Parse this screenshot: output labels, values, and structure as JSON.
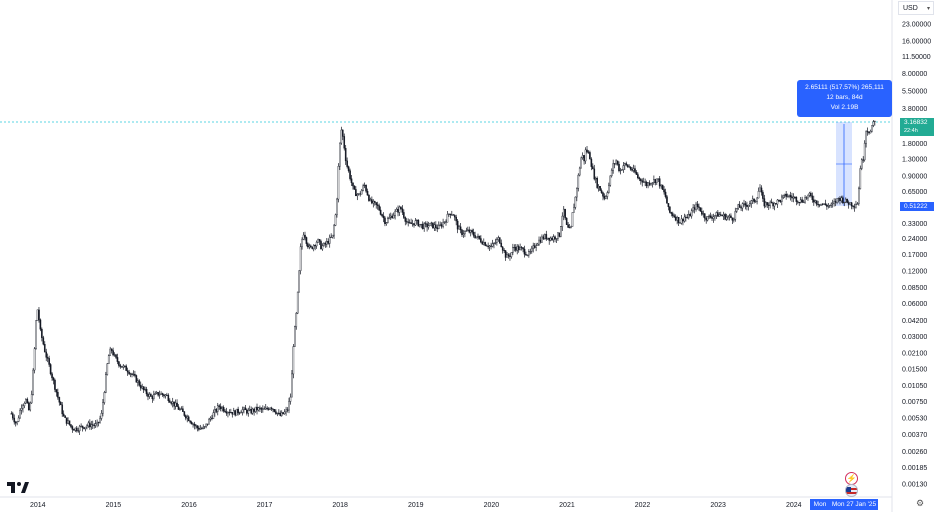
{
  "toolbar": {
    "currency": "USD"
  },
  "measure": {
    "change": "2.65111 (517.57%) 265,111",
    "bars": "12 bars, 84d",
    "volume": "Vol 2.19B"
  },
  "labels": {
    "last_price": "3.16832",
    "countdown": "22:4h",
    "range_low": "0.51222",
    "crosshair_day": "Mon",
    "crosshair_date": "Mon 27 Jan '25"
  },
  "chart_data": {
    "type": "candlestick",
    "scale": "log",
    "y_axis_ticks": [
      "23.00000",
      "16.00000",
      "11.50000",
      "8.00000",
      "5.50000",
      "3.80000",
      "1.80000",
      "1.30000",
      "0.90000",
      "0.65000",
      "0.33000",
      "0.24000",
      "0.17000",
      "0.12000",
      "0.08500",
      "0.06000",
      "0.04200",
      "0.03000",
      "0.02100",
      "0.01500",
      "0.01050",
      "0.00750",
      "0.00530",
      "0.00370",
      "0.00260",
      "0.00185",
      "0.00130"
    ],
    "x_axis_ticks": [
      "2014",
      "2015",
      "2016",
      "2017",
      "2018",
      "2019",
      "2020",
      "2021",
      "2022",
      "2023",
      "2024"
    ],
    "ylim": [
      0.00105,
      35
    ],
    "xlim": [
      2013.5,
      2025.3
    ],
    "series_close": [
      [
        2013.65,
        0.0058
      ],
      [
        2013.72,
        0.0046
      ],
      [
        2013.78,
        0.0068
      ],
      [
        2013.84,
        0.0078
      ],
      [
        2013.88,
        0.0062
      ],
      [
        2013.91,
        0.0075
      ],
      [
        2013.95,
        0.018
      ],
      [
        2013.98,
        0.045
      ],
      [
        2014.0,
        0.055
      ],
      [
        2014.03,
        0.034
      ],
      [
        2014.06,
        0.028
      ],
      [
        2014.1,
        0.021
      ],
      [
        2014.15,
        0.016
      ],
      [
        2014.2,
        0.012
      ],
      [
        2014.25,
        0.009
      ],
      [
        2014.3,
        0.0068
      ],
      [
        2014.35,
        0.0052
      ],
      [
        2014.4,
        0.0048
      ],
      [
        2014.45,
        0.0043
      ],
      [
        2014.5,
        0.0042
      ],
      [
        2014.6,
        0.0044
      ],
      [
        2014.7,
        0.0046
      ],
      [
        2014.78,
        0.0045
      ],
      [
        2014.84,
        0.0055
      ],
      [
        2014.88,
        0.0095
      ],
      [
        2014.93,
        0.019
      ],
      [
        2014.97,
        0.023
      ],
      [
        2015.02,
        0.019
      ],
      [
        2015.1,
        0.016
      ],
      [
        2015.2,
        0.0145
      ],
      [
        2015.3,
        0.012
      ],
      [
        2015.4,
        0.0095
      ],
      [
        2015.5,
        0.0082
      ],
      [
        2015.6,
        0.0089
      ],
      [
        2015.7,
        0.0085
      ],
      [
        2015.8,
        0.0071
      ],
      [
        2015.9,
        0.0061
      ],
      [
        2016.0,
        0.0052
      ],
      [
        2016.1,
        0.0043
      ],
      [
        2016.2,
        0.0042
      ],
      [
        2016.3,
        0.0055
      ],
      [
        2016.4,
        0.0068
      ],
      [
        2016.5,
        0.0062
      ],
      [
        2016.6,
        0.0059
      ],
      [
        2016.7,
        0.0063
      ],
      [
        2016.8,
        0.006
      ],
      [
        2016.9,
        0.0064
      ],
      [
        2017.0,
        0.0062
      ],
      [
        2017.08,
        0.0068
      ],
      [
        2017.15,
        0.0061
      ],
      [
        2017.2,
        0.0055
      ],
      [
        2017.25,
        0.0058
      ],
      [
        2017.3,
        0.0062
      ],
      [
        2017.35,
        0.0088
      ],
      [
        2017.38,
        0.025
      ],
      [
        2017.42,
        0.048
      ],
      [
        2017.45,
        0.095
      ],
      [
        2017.48,
        0.21
      ],
      [
        2017.52,
        0.28
      ],
      [
        2017.56,
        0.22
      ],
      [
        2017.6,
        0.19
      ],
      [
        2017.65,
        0.21
      ],
      [
        2017.7,
        0.23
      ],
      [
        2017.75,
        0.2
      ],
      [
        2017.8,
        0.21
      ],
      [
        2017.85,
        0.23
      ],
      [
        2017.9,
        0.25
      ],
      [
        2017.95,
        0.45
      ],
      [
        2017.98,
        1.2
      ],
      [
        2018.01,
        2.5
      ],
      [
        2018.04,
        2.0
      ],
      [
        2018.08,
        1.2
      ],
      [
        2018.12,
        0.95
      ],
      [
        2018.18,
        0.65
      ],
      [
        2018.25,
        0.6
      ],
      [
        2018.32,
        0.75
      ],
      [
        2018.4,
        0.52
      ],
      [
        2018.5,
        0.47
      ],
      [
        2018.6,
        0.34
      ],
      [
        2018.7,
        0.4
      ],
      [
        2018.8,
        0.46
      ],
      [
        2018.85,
        0.38
      ],
      [
        2018.9,
        0.32
      ],
      [
        2019.0,
        0.34
      ],
      [
        2019.1,
        0.31
      ],
      [
        2019.2,
        0.32
      ],
      [
        2019.3,
        0.3
      ],
      [
        2019.4,
        0.36
      ],
      [
        2019.45,
        0.42
      ],
      [
        2019.5,
        0.4
      ],
      [
        2019.55,
        0.31
      ],
      [
        2019.6,
        0.27
      ],
      [
        2019.7,
        0.28
      ],
      [
        2019.8,
        0.25
      ],
      [
        2019.9,
        0.22
      ],
      [
        2020.0,
        0.2
      ],
      [
        2020.1,
        0.24
      ],
      [
        2020.2,
        0.16
      ],
      [
        2020.25,
        0.17
      ],
      [
        2020.3,
        0.2
      ],
      [
        2020.4,
        0.19
      ],
      [
        2020.5,
        0.17
      ],
      [
        2020.6,
        0.22
      ],
      [
        2020.7,
        0.25
      ],
      [
        2020.8,
        0.24
      ],
      [
        2020.9,
        0.26
      ],
      [
        2020.95,
        0.45
      ],
      [
        2021.0,
        0.3
      ],
      [
        2021.05,
        0.28
      ],
      [
        2021.08,
        0.45
      ],
      [
        2021.1,
        0.5
      ],
      [
        2021.15,
        0.9
      ],
      [
        2021.2,
        1.5
      ],
      [
        2021.22,
        1.2
      ],
      [
        2021.25,
        1.6
      ],
      [
        2021.3,
        1.4
      ],
      [
        2021.35,
        0.95
      ],
      [
        2021.4,
        0.75
      ],
      [
        2021.45,
        0.66
      ],
      [
        2021.5,
        0.56
      ],
      [
        2021.55,
        0.72
      ],
      [
        2021.6,
        1.1
      ],
      [
        2021.65,
        1.25
      ],
      [
        2021.7,
        1.0
      ],
      [
        2021.75,
        1.15
      ],
      [
        2021.8,
        1.12
      ],
      [
        2021.85,
        1.05
      ],
      [
        2021.9,
        0.97
      ],
      [
        2021.95,
        0.85
      ],
      [
        2022.0,
        0.83
      ],
      [
        2022.05,
        0.75
      ],
      [
        2022.1,
        0.8
      ],
      [
        2022.15,
        0.82
      ],
      [
        2022.2,
        0.85
      ],
      [
        2022.25,
        0.7
      ],
      [
        2022.3,
        0.6
      ],
      [
        2022.35,
        0.42
      ],
      [
        2022.4,
        0.4
      ],
      [
        2022.5,
        0.34
      ],
      [
        2022.55,
        0.38
      ],
      [
        2022.6,
        0.37
      ],
      [
        2022.7,
        0.48
      ],
      [
        2022.75,
        0.46
      ],
      [
        2022.8,
        0.4
      ],
      [
        2022.85,
        0.37
      ],
      [
        2022.9,
        0.38
      ],
      [
        2023.0,
        0.4
      ],
      [
        2023.1,
        0.38
      ],
      [
        2023.2,
        0.37
      ],
      [
        2023.25,
        0.46
      ],
      [
        2023.3,
        0.47
      ],
      [
        2023.4,
        0.5
      ],
      [
        2023.5,
        0.55
      ],
      [
        2023.55,
        0.72
      ],
      [
        2023.6,
        0.5
      ],
      [
        2023.7,
        0.5
      ],
      [
        2023.8,
        0.53
      ],
      [
        2023.9,
        0.6
      ],
      [
        2024.0,
        0.57
      ],
      [
        2024.1,
        0.53
      ],
      [
        2024.2,
        0.6
      ],
      [
        2024.3,
        0.52
      ],
      [
        2024.4,
        0.49
      ],
      [
        2024.5,
        0.48
      ],
      [
        2024.6,
        0.57
      ],
      [
        2024.7,
        0.52
      ],
      [
        2024.8,
        0.49
      ],
      [
        2024.85,
        0.52
      ],
      [
        2024.88,
        1.1
      ],
      [
        2024.92,
        1.35
      ],
      [
        2024.95,
        2.4
      ],
      [
        2024.98,
        2.4
      ],
      [
        2025.02,
        2.3
      ],
      [
        2025.06,
        2.9
      ],
      [
        2025.08,
        3.1
      ]
    ]
  },
  "colors": {
    "accent": "#2962ff",
    "last_price_bg": "#22ab94",
    "candle": "#131722",
    "level_line": "#26c6da"
  },
  "icons": [
    "tradingview-logo",
    "lightning-icon",
    "flag-icon"
  ]
}
